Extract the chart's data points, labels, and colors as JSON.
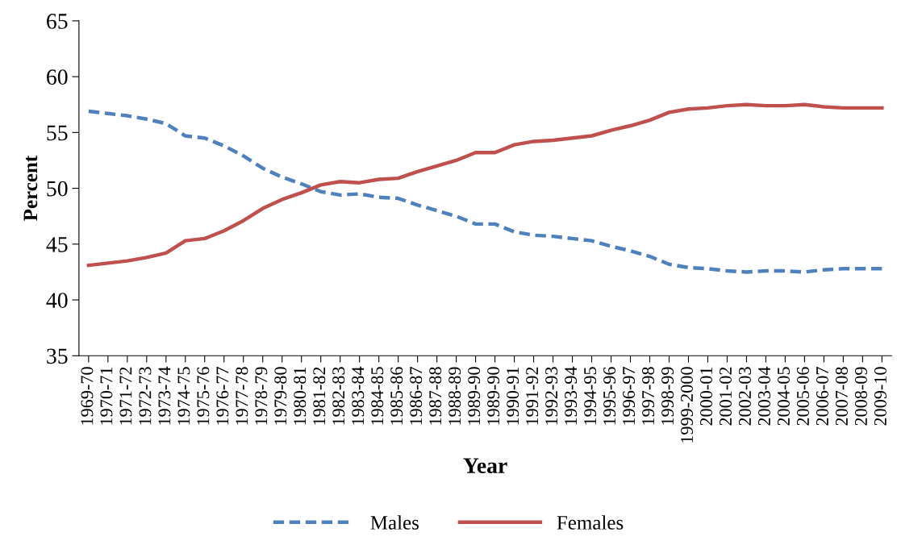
{
  "chart_data": {
    "type": "line",
    "xlabel": "Year",
    "ylabel": "Percent",
    "categories": [
      "1969-70",
      "1970-71",
      "1971-72",
      "1972-73",
      "1973-74",
      "1974-75",
      "1975-76",
      "1976-77",
      "1977-78",
      "1978-79",
      "1979-80",
      "1980-81",
      "1981-82",
      "1982-83",
      "1983-84",
      "1984-85",
      "1985-86",
      "1986-87",
      "1987-88",
      "1988-89",
      "1989-90",
      "1989-90",
      "1990-91",
      "1991-92",
      "1992-93",
      "1993-94",
      "1994-95",
      "1995-96",
      "1996-97",
      "1997-98",
      "1998-99",
      "1999-2000",
      "2000-01",
      "2001-02",
      "2002-03",
      "2003-04",
      "2004-05",
      "2005-06",
      "2006-07",
      "2007-08",
      "2008-09",
      "2009-10"
    ],
    "series": [
      {
        "name": "Males",
        "color": "#4f81bd",
        "line_style": "dashed",
        "values": [
          56.9,
          56.7,
          56.5,
          56.2,
          55.8,
          54.7,
          54.5,
          53.8,
          52.9,
          51.8,
          51.0,
          50.4,
          49.7,
          49.4,
          49.5,
          49.2,
          49.1,
          48.5,
          48.0,
          47.5,
          46.8,
          46.8,
          46.1,
          45.8,
          45.7,
          45.5,
          45.3,
          44.8,
          44.4,
          43.9,
          43.2,
          42.9,
          42.8,
          42.6,
          42.5,
          42.6,
          42.6,
          42.5,
          42.7,
          42.8,
          42.8,
          42.8
        ]
      },
      {
        "name": "Females",
        "color": "#c0504d",
        "line_style": "solid",
        "values": [
          43.1,
          43.3,
          43.5,
          43.8,
          44.2,
          45.3,
          45.5,
          46.2,
          47.1,
          48.2,
          49.0,
          49.6,
          50.3,
          50.6,
          50.5,
          50.8,
          50.9,
          51.5,
          52.0,
          52.5,
          53.2,
          53.2,
          53.9,
          54.2,
          54.3,
          54.5,
          54.7,
          55.2,
          55.6,
          56.1,
          56.8,
          57.1,
          57.2,
          57.4,
          57.5,
          57.4,
          57.4,
          57.5,
          57.3,
          57.2,
          57.2,
          57.2
        ]
      }
    ],
    "ylim": [
      35,
      65
    ],
    "yticks": [
      35,
      40,
      45,
      50,
      55,
      60,
      65
    ],
    "grid": false,
    "legend": "bottom",
    "marker": "none"
  }
}
